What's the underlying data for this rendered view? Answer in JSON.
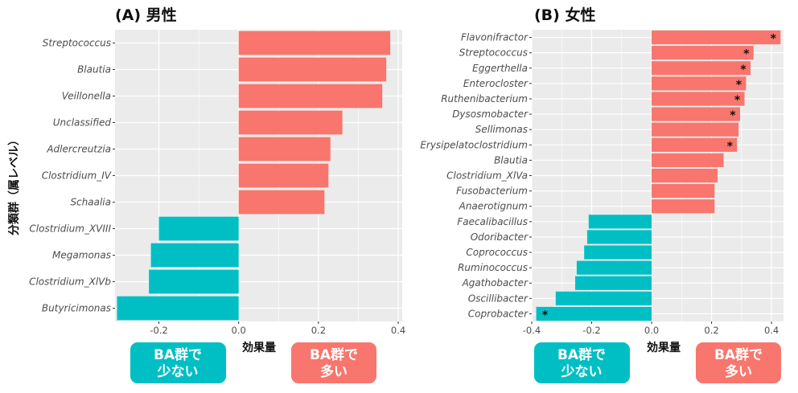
{
  "y_axis_label": "分類群（属レベル）",
  "x_axis_label": "効果量",
  "colors": {
    "positive": "#F8766D",
    "negative": "#00BFC4",
    "panel_bg": "#EBEBEB",
    "grid": "#FFFFFF"
  },
  "legend_buttons": {
    "low": {
      "line1": "BA群で",
      "line2": "少ない",
      "color": "#00BFC4"
    },
    "high": {
      "line1": "BA群で",
      "line2": "多い",
      "color": "#F8766D"
    }
  },
  "chart_data": [
    {
      "type": "bar",
      "orientation": "horizontal",
      "title": "(A) 男性",
      "xlabel": "効果量",
      "ylabel": "分類群（属レベル）",
      "xlim": [
        -0.31,
        0.41
      ],
      "x_ticks": [
        -0.2,
        0.0,
        0.2,
        0.4
      ],
      "x_tick_labels": [
        "-0.2",
        "0.0",
        "0.2",
        "0.4"
      ],
      "grid": true,
      "categories": [
        "Streptococcus",
        "Blautia",
        "Veillonella",
        "Unclassified",
        "Adlercreutzia",
        "Clostridium_IV",
        "Schaalia",
        "Clostridium_XVIII",
        "Megamonas",
        "Clostridium_XlVb",
        "Butyricimonas"
      ],
      "values": [
        0.38,
        0.37,
        0.36,
        0.26,
        0.23,
        0.225,
        0.215,
        -0.2,
        -0.22,
        -0.225,
        -0.305
      ],
      "significant": [
        false,
        false,
        false,
        false,
        false,
        false,
        false,
        false,
        false,
        false,
        false
      ]
    },
    {
      "type": "bar",
      "orientation": "horizontal",
      "title": "(B) 女性",
      "xlabel": "効果量",
      "ylabel": "",
      "xlim": [
        -0.4,
        0.44
      ],
      "x_ticks": [
        -0.4,
        -0.2,
        0.0,
        0.2,
        0.4
      ],
      "x_tick_labels": [
        "-0.4",
        "-0.2",
        "0.0",
        "0.2",
        "0.4"
      ],
      "grid": true,
      "categories": [
        "Flavonifractor",
        "Streptococcus",
        "Eggerthella",
        "Enterocloster",
        "Ruthenibacterium",
        "Dysosmobacter",
        "Sellimonas",
        "Erysipelatoclostridium",
        "Blautia",
        "Clostridium_XlVa",
        "Fusobacterium",
        "Anaerotignum",
        "Faecalibacillus",
        "Odoribacter",
        "Coprococcus",
        "Ruminococcus",
        "Agathobacter",
        "Oscillibacter",
        "Coprobacter"
      ],
      "values": [
        0.43,
        0.34,
        0.33,
        0.315,
        0.31,
        0.295,
        0.29,
        0.285,
        0.24,
        0.22,
        0.21,
        0.21,
        -0.21,
        -0.215,
        -0.225,
        -0.25,
        -0.255,
        -0.32,
        -0.385
      ],
      "significant": [
        true,
        true,
        true,
        true,
        true,
        true,
        false,
        true,
        false,
        false,
        false,
        false,
        false,
        false,
        false,
        false,
        false,
        false,
        true
      ],
      "significance_marker": "*"
    }
  ]
}
